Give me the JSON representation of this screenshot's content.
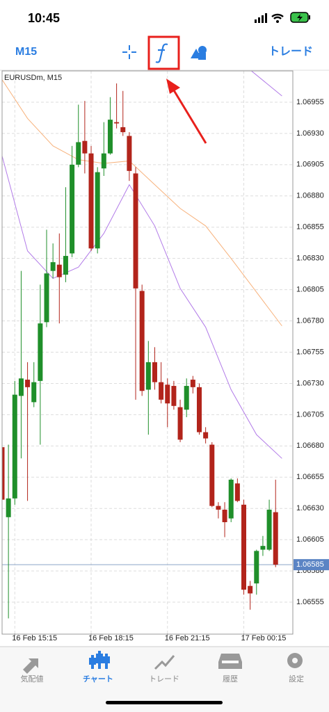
{
  "status_bar": {
    "time": "10:45"
  },
  "toolbar": {
    "timeframe": "M15",
    "trade": "トレード"
  },
  "chart_data": {
    "type": "candlestick",
    "title": "EURUSDm, M15",
    "up_color": "#1f8f2a",
    "down_color": "#b2241b",
    "open": [
      1.06679,
      1.06623,
      1.06638,
      1.0672,
      1.06733,
      1.06715,
      1.06732,
      1.06779,
      1.0682,
      1.06825,
      1.06817,
      1.06834,
      1.06905,
      1.06924,
      1.06914,
      1.06838,
      1.06902,
      1.06914,
      1.06939,
      1.06935,
      1.06928,
      1.06898,
      1.06804,
      1.06725,
      1.06747,
      1.06731,
      1.06729,
      1.06728,
      1.06711,
      1.06709,
      1.06733,
      1.06727,
      1.06691,
      1.06681,
      1.06632,
      1.06629,
      1.06622,
      1.0665,
      1.06633,
      1.06568,
      1.0657,
      1.06597,
      1.06597,
      1.06627
    ],
    "high": [
      1.06681,
      1.06681,
      1.06732,
      1.0682,
      1.06747,
      1.06747,
      1.06809,
      1.06853,
      1.06842,
      1.0685,
      1.06887,
      1.0692,
      1.06953,
      1.06956,
      1.0692,
      1.06903,
      1.06939,
      1.06959,
      1.0697,
      1.06964,
      1.06931,
      1.06903,
      1.06809,
      1.06764,
      1.06759,
      1.06747,
      1.06734,
      1.06732,
      1.06717,
      1.06734,
      1.06736,
      1.0673,
      1.06695,
      1.06683,
      1.06635,
      1.06635,
      1.06654,
      1.06654,
      1.06637,
      1.06572,
      1.06597,
      1.06608,
      1.06637,
      1.06653
    ],
    "low": [
      1.06633,
      1.06542,
      1.06633,
      1.0667,
      1.06636,
      1.06711,
      1.06681,
      1.06775,
      1.06814,
      1.06778,
      1.06811,
      1.06831,
      1.06903,
      1.06898,
      1.06836,
      1.06834,
      1.06896,
      1.06913,
      1.06934,
      1.06928,
      1.06892,
      1.06717,
      1.0672,
      1.06689,
      1.06725,
      1.06714,
      1.06695,
      1.06709,
      1.06683,
      1.06703,
      1.06722,
      1.06689,
      1.06682,
      1.06631,
      1.06622,
      1.06607,
      1.06619,
      1.06635,
      1.06561,
      1.06549,
      1.06561,
      1.06592,
      1.06596,
      1.06583
    ],
    "close": [
      1.06637,
      1.06638,
      1.06721,
      1.06734,
      1.06727,
      1.06731,
      1.06778,
      1.06818,
      1.06827,
      1.06815,
      1.06832,
      1.06905,
      1.06923,
      1.06914,
      1.06838,
      1.06899,
      1.06914,
      1.06941,
      1.06938,
      1.06931,
      1.069,
      1.06806,
      1.06724,
      1.06747,
      1.06731,
      1.06717,
      1.06714,
      1.06712,
      1.06685,
      1.06728,
      1.06727,
      1.06691,
      1.06686,
      1.06632,
      1.06629,
      1.06619,
      1.06653,
      1.06636,
      1.06565,
      1.06562,
      1.06596,
      1.066,
      1.06629,
      1.06585
    ],
    "overlays": [
      {
        "color": "#f7b27c",
        "x": [
          0,
          4,
          8,
          12,
          16,
          20,
          24,
          28,
          32,
          36,
          40,
          44
        ],
        "values": [
          1.06973,
          1.06942,
          1.0692,
          1.06909,
          1.06906,
          1.06908,
          1.06889,
          1.0687,
          1.06856,
          1.0683,
          1.06803,
          1.06776
        ]
      },
      {
        "color": "#b27be8",
        "x": [
          0,
          4,
          8,
          12,
          16,
          20,
          24,
          28,
          32,
          36,
          40,
          44
        ],
        "values": [
          1.06912,
          1.06836,
          1.06814,
          1.06823,
          1.0685,
          1.06889,
          1.06856,
          1.06806,
          1.06775,
          1.06725,
          1.06689,
          1.0667
        ]
      },
      {
        "color": "#b27be8",
        "x": [
          38,
          44
        ],
        "values": [
          1.06985,
          1.0696
        ]
      }
    ],
    "current_price": 1.06585,
    "xlim": [
      0,
      45.6
    ],
    "ylim": [
      1.0653,
      1.0698
    ],
    "xticks": [
      {
        "value": 2,
        "label": "16 Feb 15:15"
      },
      {
        "value": 14,
        "label": "16 Feb 18:15"
      },
      {
        "value": 26,
        "label": "16 Feb 21:15"
      },
      {
        "value": 38,
        "label": "17 Feb 00:15"
      }
    ],
    "yticks": [
      1.06955,
      {
        "value": 1.0693,
        "label": "1.06930"
      },
      1.06905,
      {
        "value": 1.0688,
        "label": "1.06880"
      },
      1.06855,
      {
        "value": 1.0683,
        "label": "1.06830"
      },
      1.06805,
      {
        "value": 1.0678,
        "label": "1.06780"
      },
      1.06755,
      {
        "value": 1.0673,
        "label": "1.06730"
      },
      1.06705,
      {
        "value": 1.0668,
        "label": "1.06680"
      },
      1.06655,
      {
        "value": 1.0663,
        "label": "1.06630"
      },
      1.06605,
      {
        "value": 1.0658,
        "label": "1.06580"
      },
      1.06555
    ],
    "grid": true
  },
  "tabs": [
    {
      "label": "気配値"
    },
    {
      "label": "チャート"
    },
    {
      "label": "トレード"
    },
    {
      "label": "履歴"
    },
    {
      "label": "設定"
    }
  ]
}
